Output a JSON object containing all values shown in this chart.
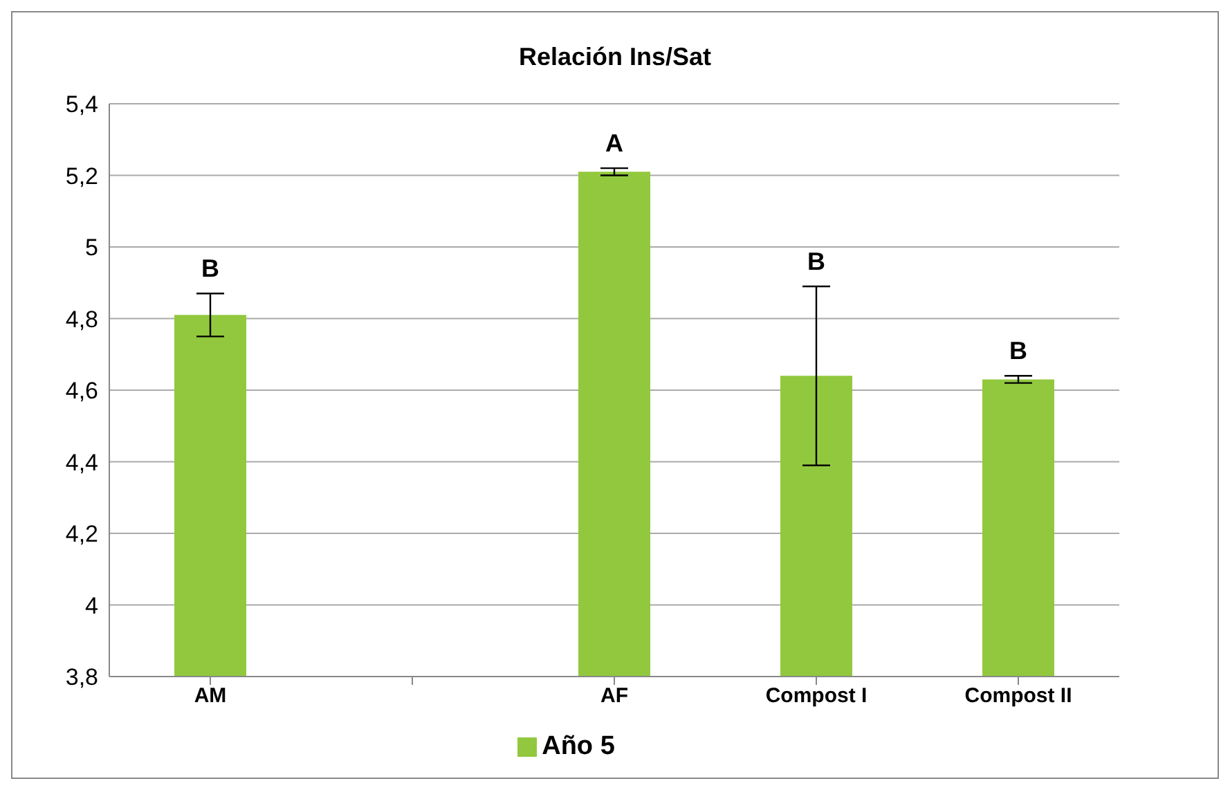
{
  "chart_data": {
    "type": "bar",
    "title": "Relación Ins/Sat",
    "categories": [
      "AM",
      null,
      "AF",
      "Compost I",
      "Compost II"
    ],
    "series": [
      {
        "name": "Año 5",
        "color": "#92c83e",
        "values": [
          4.81,
          null,
          5.21,
          4.64,
          4.63
        ],
        "errors": [
          0.06,
          null,
          0.01,
          0.25,
          0.01
        ]
      }
    ],
    "ylim": [
      3.8,
      5.4
    ],
    "yticks": [
      {
        "value": 3.8,
        "label": "3,8"
      },
      {
        "value": 4,
        "label": "4"
      },
      {
        "value": 4.2,
        "label": "4,2"
      },
      {
        "value": 4.4,
        "label": "4,4"
      },
      {
        "value": 4.6,
        "label": "4,6"
      },
      {
        "value": 4.8,
        "label": "4,8"
      },
      {
        "value": 5,
        "label": "5"
      },
      {
        "value": 5.2,
        "label": "5,2"
      },
      {
        "value": 5.4,
        "label": "5,4"
      }
    ],
    "grid": "y",
    "legend": "bottom",
    "annotations": [
      {
        "text": "B",
        "x": "AM",
        "y": 4.87
      },
      {
        "text": "A",
        "x": "AF",
        "y": 5.22
      },
      {
        "text": "B",
        "x": "Compost I",
        "y": 4.89
      },
      {
        "text": "B",
        "x": "Compost II",
        "y": 4.64
      }
    ]
  }
}
